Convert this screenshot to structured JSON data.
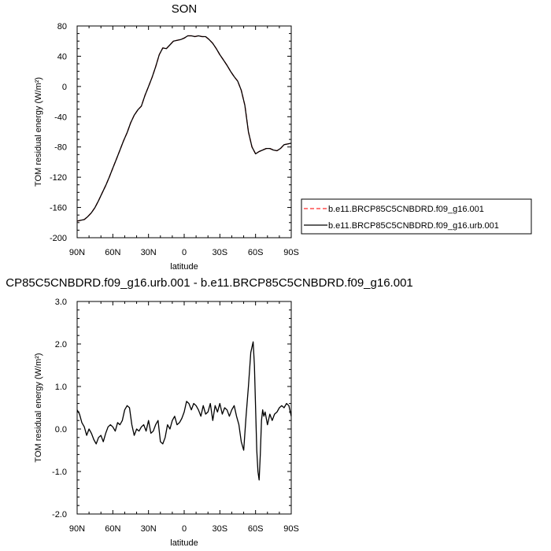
{
  "chart_data": [
    {
      "type": "line",
      "title": "SON",
      "xlabel": "latitude",
      "ylabel": "TOM residual energy (W/m²)",
      "xlim": [
        90,
        -90
      ],
      "ylim": [
        -200,
        80
      ],
      "x_ticks": [
        90,
        60,
        30,
        0,
        -30,
        -60,
        -90
      ],
      "x_tick_labels": [
        "90N",
        "60N",
        "30N",
        "0",
        "30S",
        "60S",
        "90S"
      ],
      "y_ticks": [
        80,
        40,
        0,
        -40,
        -80,
        -120,
        -160,
        -200
      ],
      "y_tick_labels": [
        "80",
        "40",
        "0",
        "-40",
        "-80",
        "-120",
        "-160",
        "-200"
      ],
      "legend_position": "right",
      "series": [
        {
          "name": "b.e11.BRCP85C5CNBDRD.f09_g16.001",
          "color": "#ff2a2a",
          "dash": "dashed",
          "x": [
            90,
            87,
            84,
            81,
            78,
            75,
            72,
            69,
            66,
            63,
            60,
            57,
            54,
            51,
            48,
            45,
            42,
            39,
            36,
            33,
            30,
            27,
            24,
            21,
            18,
            15,
            12,
            9,
            6,
            3,
            0,
            -3,
            -6,
            -9,
            -12,
            -15,
            -18,
            -21,
            -24,
            -27,
            -30,
            -33,
            -36,
            -39,
            -42,
            -45,
            -48,
            -51,
            -54,
            -57,
            -60,
            -63,
            -66,
            -69,
            -72,
            -75,
            -78,
            -81,
            -84,
            -87,
            -90
          ],
          "y": [
            -178,
            -177,
            -176,
            -172,
            -167,
            -160,
            -151,
            -141,
            -131,
            -120,
            -108,
            -96,
            -84,
            -72,
            -61,
            -48,
            -38,
            -31,
            -26,
            -12,
            0,
            12,
            26,
            42,
            51,
            50,
            55,
            60,
            61,
            62,
            64,
            67,
            67,
            66,
            67,
            66,
            66,
            62,
            57,
            50,
            42,
            35,
            28,
            20,
            13,
            7,
            -5,
            -25,
            -60,
            -80,
            -89,
            -86,
            -84,
            -82,
            -82,
            -84,
            -85,
            -82,
            -77,
            -76,
            -75
          ]
        },
        {
          "name": "b.e11.BRCP85C5CNBDRD.f09_g16.urb.001",
          "color": "#000000",
          "dash": "solid",
          "x": [
            90,
            87,
            84,
            81,
            78,
            75,
            72,
            69,
            66,
            63,
            60,
            57,
            54,
            51,
            48,
            45,
            42,
            39,
            36,
            33,
            30,
            27,
            24,
            21,
            18,
            15,
            12,
            9,
            6,
            3,
            0,
            -3,
            -6,
            -9,
            -12,
            -15,
            -18,
            -21,
            -24,
            -27,
            -30,
            -33,
            -36,
            -39,
            -42,
            -45,
            -48,
            -51,
            -54,
            -57,
            -60,
            -63,
            -66,
            -69,
            -72,
            -75,
            -78,
            -81,
            -84,
            -87,
            -90
          ],
          "y": [
            -178,
            -177,
            -176,
            -172,
            -167,
            -160,
            -151,
            -141,
            -131,
            -120,
            -108,
            -96,
            -84,
            -72,
            -61,
            -48,
            -38,
            -31,
            -26,
            -12,
            0,
            12,
            26,
            42,
            51,
            50,
            55,
            60,
            61,
            62,
            64,
            67,
            67,
            66,
            67,
            66,
            66,
            62,
            57,
            50,
            42,
            35,
            28,
            20,
            13,
            7,
            -5,
            -25,
            -60,
            -80,
            -89,
            -86,
            -84,
            -82,
            -82,
            -84,
            -85,
            -82,
            -77,
            -76,
            -75
          ]
        }
      ]
    },
    {
      "type": "line",
      "title": "CP85C5CNBDRD.f09_g16.urb.001 - b.e11.BRCP85C5CNBDRD.f09_g16.001",
      "xlabel": "latitude",
      "ylabel": "TOM residual energy (W/m²)",
      "xlim": [
        90,
        -90
      ],
      "ylim": [
        -2.0,
        3.0
      ],
      "x_ticks": [
        90,
        60,
        30,
        0,
        -30,
        -60,
        -90
      ],
      "x_tick_labels": [
        "90N",
        "60N",
        "30N",
        "0",
        "30S",
        "60S",
        "90S"
      ],
      "y_ticks": [
        3.0,
        2.0,
        1.0,
        0.0,
        -1.0,
        -2.0
      ],
      "y_tick_labels": [
        "3.0",
        "2.0",
        "1.0",
        "0.0",
        "-1.0",
        "-2.0"
      ],
      "series": [
        {
          "color": "#000000",
          "x": [
            90,
            88,
            86,
            84,
            82,
            80,
            78,
            76,
            74,
            72,
            70,
            68,
            66,
            64,
            62,
            60,
            58,
            56,
            54,
            52,
            50,
            48,
            46,
            44,
            42,
            40,
            38,
            36,
            34,
            32,
            30,
            28,
            26,
            24,
            22,
            20,
            18,
            16,
            14,
            12,
            10,
            8,
            6,
            4,
            2,
            0,
            -2,
            -4,
            -6,
            -8,
            -10,
            -12,
            -14,
            -16,
            -18,
            -20,
            -22,
            -24,
            -26,
            -28,
            -30,
            -32,
            -34,
            -36,
            -38,
            -40,
            -42,
            -44,
            -46,
            -48,
            -50,
            -52,
            -54,
            -56,
            -58,
            -59,
            -60,
            -61,
            -62,
            -63,
            -64,
            -65,
            -66,
            -67,
            -68,
            -70,
            -72,
            -74,
            -76,
            -78,
            -80,
            -82,
            -84,
            -86,
            -88,
            -90
          ],
          "y": [
            0.45,
            0.35,
            0.15,
            0.05,
            -0.15,
            0.0,
            -0.1,
            -0.25,
            -0.35,
            -0.2,
            -0.15,
            -0.3,
            -0.1,
            0.05,
            0.1,
            0.05,
            -0.05,
            0.15,
            0.1,
            0.2,
            0.45,
            0.55,
            0.5,
            0.1,
            -0.15,
            0.0,
            -0.05,
            0.05,
            0.1,
            -0.05,
            0.2,
            -0.1,
            -0.05,
            0.1,
            0.2,
            -0.3,
            -0.35,
            -0.2,
            0.1,
            0.0,
            0.2,
            0.3,
            0.1,
            0.15,
            0.25,
            0.4,
            0.65,
            0.6,
            0.45,
            0.6,
            0.55,
            0.45,
            0.3,
            0.55,
            0.35,
            0.4,
            0.6,
            0.2,
            0.55,
            0.4,
            0.6,
            0.35,
            0.5,
            0.45,
            0.3,
            0.45,
            0.55,
            0.3,
            0.1,
            -0.3,
            -0.5,
            0.3,
            1.0,
            1.8,
            2.05,
            1.5,
            0.5,
            -0.5,
            -1.0,
            -1.2,
            -0.6,
            0.2,
            0.45,
            0.3,
            0.4,
            0.1,
            0.35,
            0.2,
            0.35,
            0.4,
            0.5,
            0.55,
            0.5,
            0.6,
            0.55,
            0.3
          ]
        }
      ]
    }
  ]
}
